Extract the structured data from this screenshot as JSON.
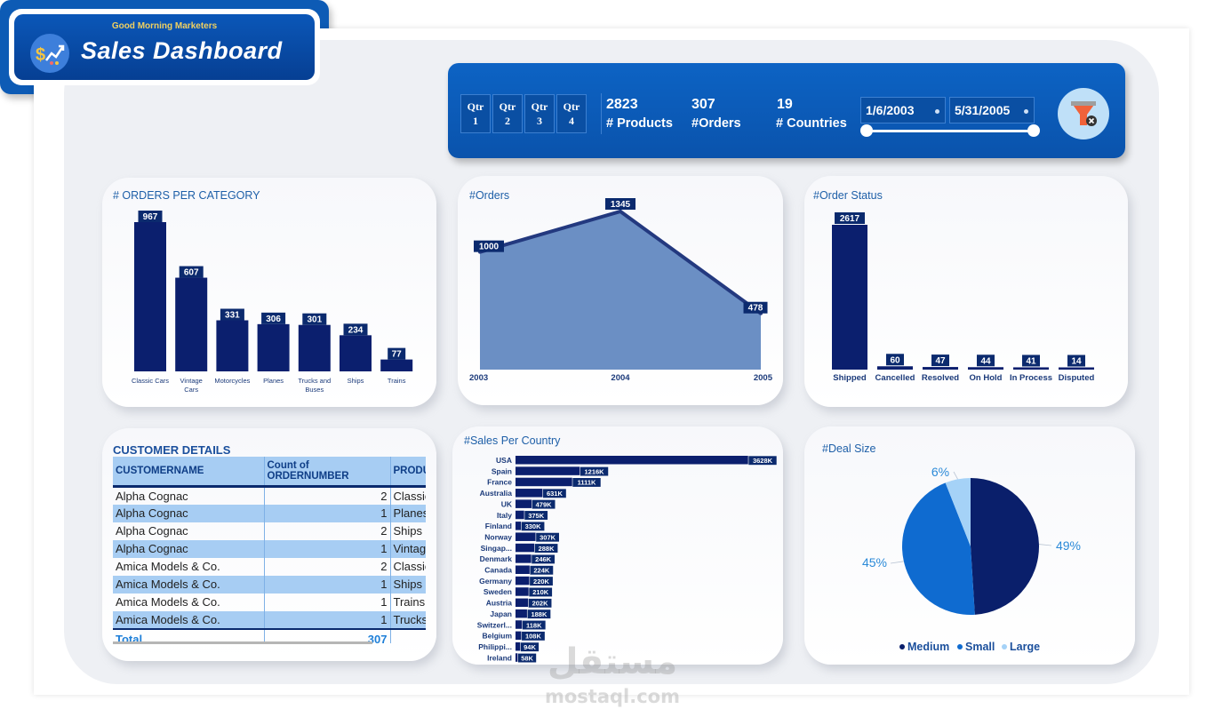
{
  "header": {
    "greeting": "Good Morning Marketers",
    "title": "Sales Dashboard",
    "quarters": [
      {
        "top": "Qtr",
        "bottom": "1"
      },
      {
        "top": "Qtr",
        "bottom": "2"
      },
      {
        "top": "Qtr",
        "bottom": "3"
      },
      {
        "top": "Qtr",
        "bottom": "4"
      }
    ],
    "kpis": [
      {
        "value": "2823",
        "label": "# Products"
      },
      {
        "value": "307",
        "label": "#Orders"
      },
      {
        "value": "19",
        "label": "# Countries"
      }
    ],
    "date_start": "1/6/2003",
    "date_end": "5/31/2005",
    "filter_icon": "funnel-clear-icon",
    "logo_icon": "dollar-growth-icon"
  },
  "colors": {
    "navy": "#0b1f6e",
    "area": "#6b8fc4",
    "medium": "#0a1f6b",
    "small": "#0f6bd0",
    "large": "#a5d2f7",
    "accent": "#1e5fa8"
  },
  "chart_data": [
    {
      "type": "bar",
      "title": "# ORDERS PER CATEGORY",
      "categories": [
        "Classic Cars",
        "Vintage Cars",
        "Motorcycles",
        "Planes",
        "Trucks and Buses",
        "Ships",
        "Trains"
      ],
      "values": [
        967,
        607,
        331,
        306,
        301,
        234,
        77
      ]
    },
    {
      "type": "area",
      "title": "#Orders",
      "x": [
        "2003",
        "2004",
        "2005"
      ],
      "values": [
        1000,
        1345,
        478
      ]
    },
    {
      "type": "bar",
      "title": "#Order Status",
      "categories": [
        "Shipped",
        "Cancelled",
        "Resolved",
        "On Hold",
        "In Process",
        "Disputed"
      ],
      "values": [
        2617,
        60,
        47,
        44,
        41,
        14
      ]
    },
    {
      "type": "bar",
      "orientation": "horizontal",
      "title": "#Sales Per Country",
      "categories": [
        "USA",
        "Spain",
        "France",
        "Australia",
        "UK",
        "Italy",
        "Finland",
        "Norway",
        "Singap...",
        "Denmark",
        "Canada",
        "Germany",
        "Sweden",
        "Austria",
        "Japan",
        "Switzerl...",
        "Belgium",
        "Philippi...",
        "Ireland"
      ],
      "values": [
        3628,
        1216,
        1111,
        631,
        479,
        375,
        330,
        307,
        288,
        246,
        224,
        220,
        210,
        202,
        188,
        118,
        108,
        94,
        58
      ],
      "labels": [
        "3628K",
        "1216K",
        "1111K",
        "631K",
        "479K",
        "375K",
        "330K",
        "307K",
        "288K",
        "246K",
        "224K",
        "220K",
        "210K",
        "202K",
        "188K",
        "118K",
        "108K",
        "94K",
        "58K"
      ]
    },
    {
      "type": "pie",
      "title": "#Deal Size",
      "slices": [
        {
          "name": "Medium",
          "value": 49,
          "label": "49%"
        },
        {
          "name": "Small",
          "value": 45,
          "label": "45%"
        },
        {
          "name": "Large",
          "value": 6,
          "label": "6%"
        }
      ],
      "legend": "bottom"
    }
  ],
  "customer_table": {
    "title": "CUSTOMER DETAILS",
    "columns": [
      "CUSTOMERNAME",
      "Count of ORDERNUMBER",
      "PRODUCTLINE"
    ],
    "rows": [
      [
        "Alpha Cognac",
        "2",
        "Classic Cars"
      ],
      [
        "Alpha Cognac",
        "1",
        "Planes"
      ],
      [
        "Alpha Cognac",
        "2",
        "Ships"
      ],
      [
        "Alpha Cognac",
        "1",
        "Vintage Cars"
      ],
      [
        "Amica Models & Co.",
        "2",
        "Classic Cars"
      ],
      [
        "Amica Models & Co.",
        "1",
        "Ships"
      ],
      [
        "Amica Models & Co.",
        "1",
        "Trains"
      ],
      [
        "Amica Models & Co.",
        "1",
        "Trucks and Buses"
      ]
    ],
    "total_label": "Total",
    "total_value": "307"
  },
  "watermark": {
    "arabic": "مستقل",
    "latin": "mostaql.com"
  }
}
